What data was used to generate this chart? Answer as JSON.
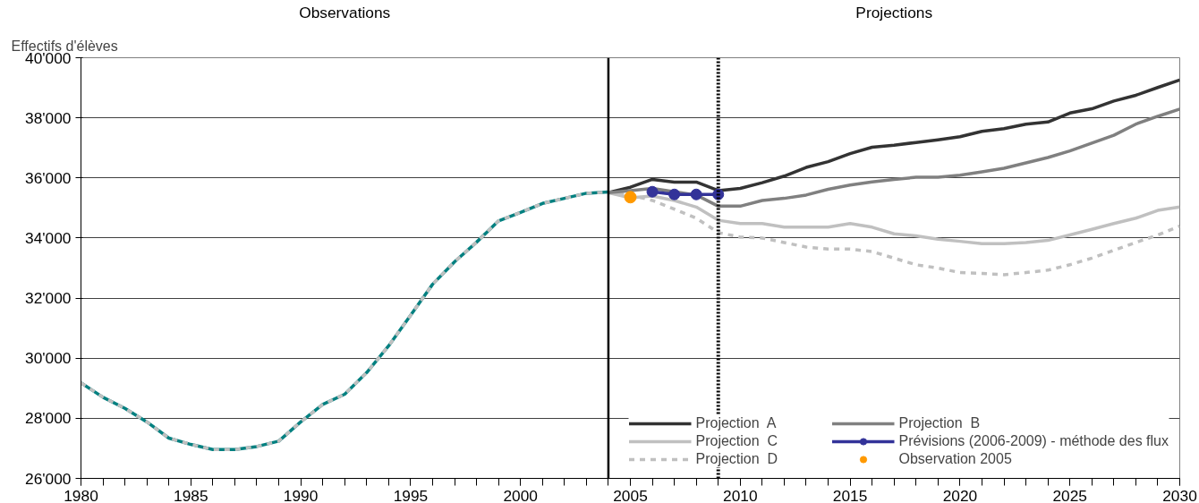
{
  "chart_data": {
    "type": "line",
    "ylabel": "Effectifs d'élèves",
    "annotations": [
      "Observations",
      "Projections"
    ],
    "xlim": [
      1980,
      2030
    ],
    "xticks": [
      1980,
      1985,
      1990,
      1995,
      2000,
      2005,
      2010,
      2015,
      2020,
      2025,
      2030
    ],
    "ylim": [
      26000,
      40000
    ],
    "yticks": [
      {
        "value": 26000,
        "label": "26'000"
      },
      {
        "value": 28000,
        "label": "28'000"
      },
      {
        "value": 30000,
        "label": "30'000"
      },
      {
        "value": 32000,
        "label": "32'000"
      },
      {
        "value": 34000,
        "label": "34'000"
      },
      {
        "value": 36000,
        "label": "36'000"
      },
      {
        "value": 38000,
        "label": "38'000"
      },
      {
        "value": 40000,
        "label": "40'000"
      }
    ],
    "grid": "y",
    "legend": "bottom right",
    "ref_lines": [
      {
        "axis": "x",
        "value": 2004,
        "color": "#000000",
        "line_style": "solid"
      },
      {
        "axis": "x",
        "value": 2009,
        "color": "#000000",
        "line_style": "dotted"
      }
    ],
    "series": [
      {
        "color": "#008080",
        "line_style": "solid",
        "marker": "none",
        "x": [
          1980,
          1981,
          1982,
          1983,
          1984,
          1985,
          1986,
          1987,
          1988,
          1989,
          1990,
          1991,
          1992,
          1993,
          1994,
          1995,
          1996,
          1997,
          1998,
          1999,
          2000,
          2001,
          2002,
          2003,
          2004
        ],
        "values": [
          29180,
          28700,
          28330,
          27880,
          27340,
          27130,
          26960,
          26960,
          27060,
          27240,
          27880,
          28460,
          28800,
          29520,
          30410,
          31430,
          32460,
          33210,
          33860,
          34570,
          34850,
          35150,
          35320,
          35490,
          35530
        ]
      },
      {
        "name": "Projection  A",
        "color": "#333333",
        "line_style": "solid",
        "marker": "none",
        "x": [
          2004,
          2005,
          2006,
          2007,
          2008,
          2009,
          2010,
          2011,
          2012,
          2013,
          2014,
          2015,
          2016,
          2017,
          2018,
          2019,
          2020,
          2021,
          2022,
          2023,
          2024,
          2025,
          2026,
          2027,
          2028,
          2029,
          2030
        ],
        "values": [
          35510,
          35690,
          35950,
          35860,
          35860,
          35580,
          35650,
          35840,
          36060,
          36350,
          36540,
          36810,
          37020,
          37090,
          37180,
          37270,
          37370,
          37550,
          37640,
          37790,
          37860,
          38160,
          38300,
          38560,
          38750,
          39010,
          39260
        ]
      },
      {
        "name": "Projection  C",
        "color": "#c0c0c0",
        "line_style": "solid",
        "marker": "none",
        "x": [
          2004,
          2005,
          2006,
          2007,
          2008,
          2009,
          2010,
          2011,
          2012,
          2013,
          2014,
          2015,
          2016,
          2017,
          2018,
          2019,
          2020,
          2021,
          2022,
          2023,
          2024,
          2025,
          2026,
          2027,
          2028,
          2029,
          2030
        ],
        "values": [
          35510,
          35340,
          35400,
          35250,
          35030,
          34590,
          34480,
          34480,
          34360,
          34360,
          34360,
          34480,
          34360,
          34140,
          34070,
          33960,
          33890,
          33810,
          33810,
          33850,
          33920,
          34100,
          34290,
          34480,
          34660,
          34920,
          35030
        ]
      },
      {
        "name": "Projection  D",
        "color": "#c0c0c0",
        "line_style": "dashed",
        "marker": "none",
        "x": [
          1980,
          1981,
          1982,
          1983,
          1984,
          1985,
          1986,
          1987,
          1988,
          1989,
          1990,
          1991,
          1992,
          1993,
          1994,
          1995,
          1996,
          1997,
          1998,
          1999,
          2000,
          2001,
          2002,
          2003,
          2004,
          2005,
          2006,
          2007,
          2008,
          2009,
          2010,
          2011,
          2012,
          2013,
          2014,
          2015,
          2016,
          2017,
          2018,
          2019,
          2020,
          2021,
          2022,
          2023,
          2024,
          2025,
          2026,
          2027,
          2028,
          2029,
          2030
        ],
        "values": [
          29180,
          28700,
          28330,
          27880,
          27340,
          27130,
          26960,
          26960,
          27060,
          27240,
          27880,
          28460,
          28800,
          29520,
          30410,
          31430,
          32460,
          33210,
          33860,
          34570,
          34850,
          35150,
          35320,
          35490,
          35530,
          35430,
          35250,
          34960,
          34660,
          34180,
          34030,
          34000,
          33850,
          33700,
          33630,
          33630,
          33550,
          33330,
          33110,
          33000,
          32850,
          32820,
          32780,
          32850,
          32930,
          33110,
          33330,
          33590,
          33850,
          34100,
          34400
        ]
      },
      {
        "name": "Projection  B",
        "color": "#808080",
        "line_style": "solid",
        "marker": "none",
        "x": [
          2004,
          2005,
          2006,
          2007,
          2008,
          2009,
          2010,
          2011,
          2012,
          2013,
          2014,
          2015,
          2016,
          2017,
          2018,
          2019,
          2020,
          2021,
          2022,
          2023,
          2024,
          2025,
          2026,
          2027,
          2028,
          2029,
          2030
        ],
        "values": [
          35510,
          35580,
          35650,
          35540,
          35430,
          35060,
          35060,
          35250,
          35320,
          35430,
          35620,
          35760,
          35870,
          35950,
          36020,
          36020,
          36090,
          36200,
          36320,
          36500,
          36680,
          36900,
          37160,
          37420,
          37790,
          38050,
          38290
        ]
      },
      {
        "name": "Prévisions (2006-2009) - méthode des flux",
        "color": "#333399",
        "line_style": "solid",
        "marker": "circle",
        "x": [
          2006,
          2007,
          2008,
          2009
        ],
        "values": [
          35540,
          35450,
          35450,
          35450
        ]
      },
      {
        "name": "Observation 2005",
        "type": "scatter",
        "color": "#ff9900",
        "marker": "circle",
        "x": [
          2005
        ],
        "values": [
          35360
        ]
      }
    ]
  }
}
